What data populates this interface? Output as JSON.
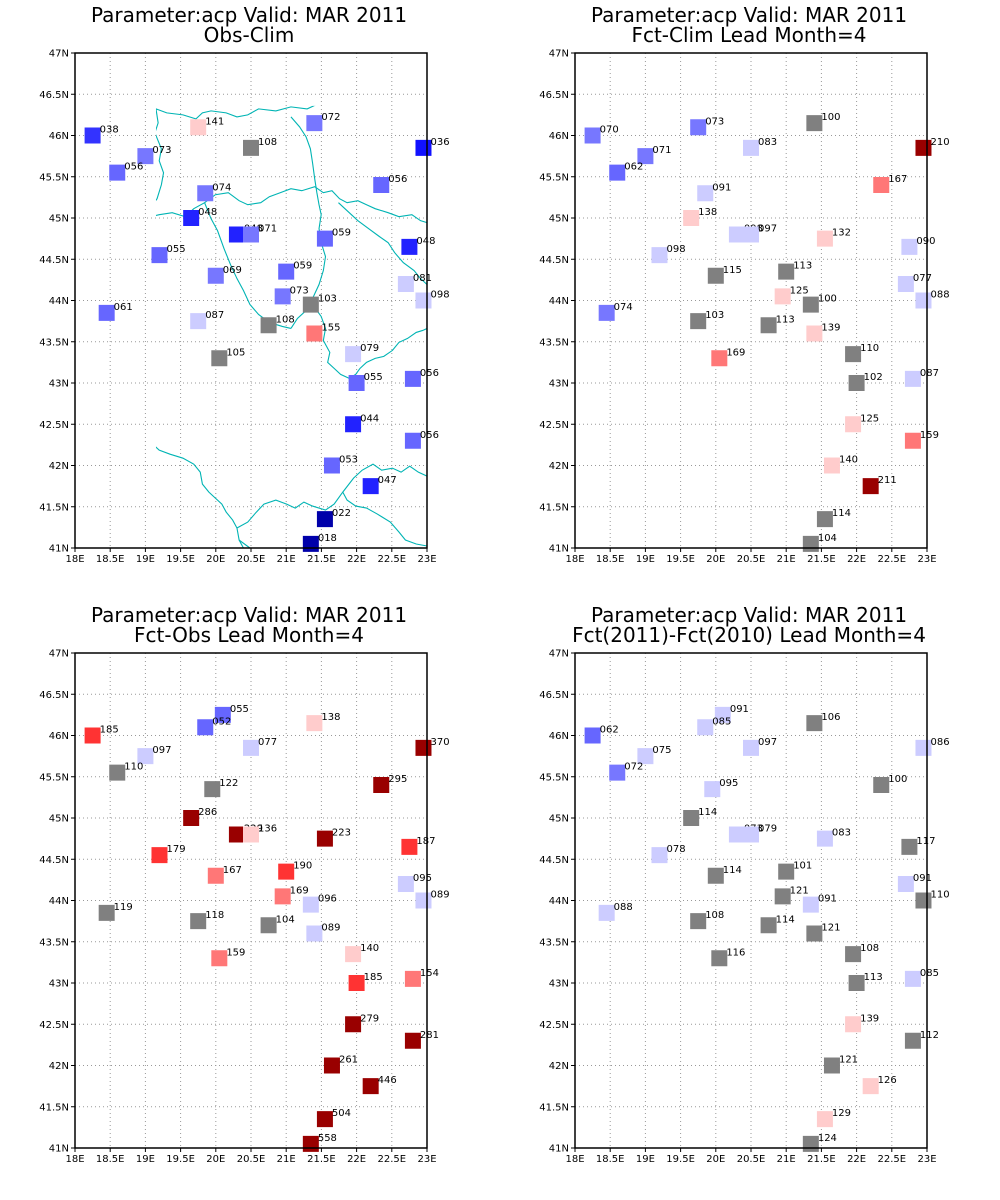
{
  "panels": [
    {
      "title1": "Parameter:acp Valid: MAR 2011",
      "title2": "Obs-Clim",
      "stations": [
        {
          "lon": 18.25,
          "lat": 46.0,
          "value": "038",
          "color": "#3333ff"
        },
        {
          "lon": 19.75,
          "lat": 46.1,
          "value": "141",
          "color": "#ffcccc"
        },
        {
          "lon": 20.5,
          "lat": 45.85,
          "value": "108",
          "color": "#808080"
        },
        {
          "lon": 21.4,
          "lat": 46.15,
          "value": "072",
          "color": "#7777ff"
        },
        {
          "lon": 22.95,
          "lat": 45.85,
          "value": "036",
          "color": "#1111ff"
        },
        {
          "lon": 19.0,
          "lat": 45.75,
          "value": "073",
          "color": "#7777ff"
        },
        {
          "lon": 18.6,
          "lat": 45.55,
          "value": "056",
          "color": "#6666ff"
        },
        {
          "lon": 19.85,
          "lat": 45.3,
          "value": "074",
          "color": "#7777ff"
        },
        {
          "lon": 22.35,
          "lat": 45.4,
          "value": "056",
          "color": "#6666ff"
        },
        {
          "lon": 19.65,
          "lat": 45.0,
          "value": "048",
          "color": "#2222ff"
        },
        {
          "lon": 20.3,
          "lat": 44.8,
          "value": "048",
          "color": "#2222ff"
        },
        {
          "lon": 20.5,
          "lat": 44.8,
          "value": "071",
          "color": "#7777ff"
        },
        {
          "lon": 21.55,
          "lat": 44.75,
          "value": "059",
          "color": "#6666ff"
        },
        {
          "lon": 22.75,
          "lat": 44.65,
          "value": "048",
          "color": "#2222ff"
        },
        {
          "lon": 19.2,
          "lat": 44.55,
          "value": "055",
          "color": "#6666ff"
        },
        {
          "lon": 20.0,
          "lat": 44.3,
          "value": "069",
          "color": "#7777ff"
        },
        {
          "lon": 21.0,
          "lat": 44.35,
          "value": "059",
          "color": "#6666ff"
        },
        {
          "lon": 22.7,
          "lat": 44.2,
          "value": "081",
          "color": "#ccccff"
        },
        {
          "lon": 20.95,
          "lat": 44.05,
          "value": "073",
          "color": "#7777ff"
        },
        {
          "lon": 21.35,
          "lat": 43.95,
          "value": "103",
          "color": "#808080"
        },
        {
          "lon": 22.95,
          "lat": 44.0,
          "value": "098",
          "color": "#ccccff"
        },
        {
          "lon": 18.45,
          "lat": 43.85,
          "value": "061",
          "color": "#6666ff"
        },
        {
          "lon": 19.75,
          "lat": 43.75,
          "value": "087",
          "color": "#ccccff"
        },
        {
          "lon": 20.75,
          "lat": 43.7,
          "value": "108",
          "color": "#808080"
        },
        {
          "lon": 21.4,
          "lat": 43.6,
          "value": "155",
          "color": "#ff7777"
        },
        {
          "lon": 20.05,
          "lat": 43.3,
          "value": "105",
          "color": "#808080"
        },
        {
          "lon": 21.95,
          "lat": 43.35,
          "value": "079",
          "color": "#ccccff"
        },
        {
          "lon": 22.0,
          "lat": 43.0,
          "value": "055",
          "color": "#6666ff"
        },
        {
          "lon": 22.8,
          "lat": 43.05,
          "value": "056",
          "color": "#6666ff"
        },
        {
          "lon": 21.95,
          "lat": 42.5,
          "value": "044",
          "color": "#2222ff"
        },
        {
          "lon": 22.8,
          "lat": 42.3,
          "value": "056",
          "color": "#6666ff"
        },
        {
          "lon": 21.65,
          "lat": 42.0,
          "value": "053",
          "color": "#6666ff"
        },
        {
          "lon": 22.2,
          "lat": 41.75,
          "value": "047",
          "color": "#2222ff"
        },
        {
          "lon": 21.55,
          "lat": 41.35,
          "value": "022",
          "color": "#0000aa"
        },
        {
          "lon": 21.35,
          "lat": 41.05,
          "value": "018",
          "color": "#0000aa"
        }
      ]
    },
    {
      "title1": "Parameter:acp Valid: MAR 2011",
      "title2": "Fct-Clim Lead Month=4",
      "stations": [
        {
          "lon": 18.25,
          "lat": 46.0,
          "value": "070",
          "color": "#7777ff"
        },
        {
          "lon": 19.75,
          "lat": 46.1,
          "value": "073",
          "color": "#7777ff"
        },
        {
          "lon": 21.4,
          "lat": 46.15,
          "value": "100",
          "color": "#808080"
        },
        {
          "lon": 22.95,
          "lat": 45.85,
          "value": "210",
          "color": "#990000"
        },
        {
          "lon": 19.0,
          "lat": 45.75,
          "value": "071",
          "color": "#7777ff"
        },
        {
          "lon": 20.5,
          "lat": 45.85,
          "value": "083",
          "color": "#ccccff"
        },
        {
          "lon": 18.6,
          "lat": 45.55,
          "value": "062",
          "color": "#6666ff"
        },
        {
          "lon": 19.85,
          "lat": 45.3,
          "value": "091",
          "color": "#ccccff"
        },
        {
          "lon": 22.35,
          "lat": 45.4,
          "value": "167",
          "color": "#ff7777"
        },
        {
          "lon": 19.65,
          "lat": 45.0,
          "value": "138",
          "color": "#ffcccc"
        },
        {
          "lon": 20.3,
          "lat": 44.8,
          "value": "098",
          "color": "#ccccff"
        },
        {
          "lon": 20.5,
          "lat": 44.8,
          "value": "097",
          "color": "#ccccff"
        },
        {
          "lon": 21.55,
          "lat": 44.75,
          "value": "132",
          "color": "#ffcccc"
        },
        {
          "lon": 22.75,
          "lat": 44.65,
          "value": "090",
          "color": "#ccccff"
        },
        {
          "lon": 19.2,
          "lat": 44.55,
          "value": "098",
          "color": "#ccccff"
        },
        {
          "lon": 20.0,
          "lat": 44.3,
          "value": "115",
          "color": "#808080"
        },
        {
          "lon": 21.0,
          "lat": 44.35,
          "value": "113",
          "color": "#808080"
        },
        {
          "lon": 22.7,
          "lat": 44.2,
          "value": "077",
          "color": "#ccccff"
        },
        {
          "lon": 20.95,
          "lat": 44.05,
          "value": "125",
          "color": "#ffcccc"
        },
        {
          "lon": 21.35,
          "lat": 43.95,
          "value": "100",
          "color": "#808080"
        },
        {
          "lon": 22.95,
          "lat": 44.0,
          "value": "088",
          "color": "#ccccff"
        },
        {
          "lon": 18.45,
          "lat": 43.85,
          "value": "074",
          "color": "#7777ff"
        },
        {
          "lon": 19.75,
          "lat": 43.75,
          "value": "103",
          "color": "#808080"
        },
        {
          "lon": 20.75,
          "lat": 43.7,
          "value": "113",
          "color": "#808080"
        },
        {
          "lon": 21.4,
          "lat": 43.6,
          "value": "139",
          "color": "#ffcccc"
        },
        {
          "lon": 20.05,
          "lat": 43.3,
          "value": "169",
          "color": "#ff7777"
        },
        {
          "lon": 21.95,
          "lat": 43.35,
          "value": "110",
          "color": "#808080"
        },
        {
          "lon": 22.0,
          "lat": 43.0,
          "value": "102",
          "color": "#808080"
        },
        {
          "lon": 22.8,
          "lat": 43.05,
          "value": "087",
          "color": "#ccccff"
        },
        {
          "lon": 21.95,
          "lat": 42.5,
          "value": "125",
          "color": "#ffcccc"
        },
        {
          "lon": 22.8,
          "lat": 42.3,
          "value": "159",
          "color": "#ff7777"
        },
        {
          "lon": 21.65,
          "lat": 42.0,
          "value": "140",
          "color": "#ffcccc"
        },
        {
          "lon": 22.2,
          "lat": 41.75,
          "value": "211",
          "color": "#990000"
        },
        {
          "lon": 21.55,
          "lat": 41.35,
          "value": "114",
          "color": "#808080"
        },
        {
          "lon": 21.35,
          "lat": 41.05,
          "value": "104",
          "color": "#808080"
        }
      ]
    },
    {
      "title1": "Parameter:acp Valid: MAR 2011",
      "title2": "Fct-Obs Lead Month=4",
      "stations": [
        {
          "lon": 18.25,
          "lat": 46.0,
          "value": "185",
          "color": "#ff3333"
        },
        {
          "lon": 20.1,
          "lat": 46.25,
          "value": "055",
          "color": "#6666ff"
        },
        {
          "lon": 19.85,
          "lat": 46.1,
          "value": "052",
          "color": "#6666ff"
        },
        {
          "lon": 21.4,
          "lat": 46.15,
          "value": "138",
          "color": "#ffcccc"
        },
        {
          "lon": 22.95,
          "lat": 45.85,
          "value": "370",
          "color": "#990000"
        },
        {
          "lon": 19.0,
          "lat": 45.75,
          "value": "097",
          "color": "#ccccff"
        },
        {
          "lon": 20.5,
          "lat": 45.85,
          "value": "077",
          "color": "#ccccff"
        },
        {
          "lon": 18.6,
          "lat": 45.55,
          "value": "110",
          "color": "#808080"
        },
        {
          "lon": 19.95,
          "lat": 45.35,
          "value": "122",
          "color": "#808080"
        },
        {
          "lon": 22.35,
          "lat": 45.4,
          "value": "295",
          "color": "#990000"
        },
        {
          "lon": 19.65,
          "lat": 45.0,
          "value": "286",
          "color": "#990000"
        },
        {
          "lon": 20.3,
          "lat": 44.8,
          "value": "229",
          "color": "#990000"
        },
        {
          "lon": 20.5,
          "lat": 44.8,
          "value": "136",
          "color": "#ffcccc"
        },
        {
          "lon": 21.55,
          "lat": 44.75,
          "value": "223",
          "color": "#990000"
        },
        {
          "lon": 22.75,
          "lat": 44.65,
          "value": "187",
          "color": "#ff3333"
        },
        {
          "lon": 19.2,
          "lat": 44.55,
          "value": "179",
          "color": "#ff3333"
        },
        {
          "lon": 20.0,
          "lat": 44.3,
          "value": "167",
          "color": "#ff7777"
        },
        {
          "lon": 21.0,
          "lat": 44.35,
          "value": "190",
          "color": "#ff3333"
        },
        {
          "lon": 22.7,
          "lat": 44.2,
          "value": "095",
          "color": "#ccccff"
        },
        {
          "lon": 20.95,
          "lat": 44.05,
          "value": "169",
          "color": "#ff7777"
        },
        {
          "lon": 21.35,
          "lat": 43.95,
          "value": "096",
          "color": "#ccccff"
        },
        {
          "lon": 22.95,
          "lat": 44.0,
          "value": "089",
          "color": "#ccccff"
        },
        {
          "lon": 18.45,
          "lat": 43.85,
          "value": "119",
          "color": "#808080"
        },
        {
          "lon": 19.75,
          "lat": 43.75,
          "value": "118",
          "color": "#808080"
        },
        {
          "lon": 20.75,
          "lat": 43.7,
          "value": "104",
          "color": "#808080"
        },
        {
          "lon": 21.4,
          "lat": 43.6,
          "value": "089",
          "color": "#ccccff"
        },
        {
          "lon": 20.05,
          "lat": 43.3,
          "value": "159",
          "color": "#ff7777"
        },
        {
          "lon": 21.95,
          "lat": 43.35,
          "value": "140",
          "color": "#ffcccc"
        },
        {
          "lon": 22.0,
          "lat": 43.0,
          "value": "185",
          "color": "#ff3333"
        },
        {
          "lon": 22.8,
          "lat": 43.05,
          "value": "154",
          "color": "#ff7777"
        },
        {
          "lon": 21.95,
          "lat": 42.5,
          "value": "279",
          "color": "#990000"
        },
        {
          "lon": 22.8,
          "lat": 42.3,
          "value": "281",
          "color": "#990000"
        },
        {
          "lon": 21.65,
          "lat": 42.0,
          "value": "261",
          "color": "#990000"
        },
        {
          "lon": 22.2,
          "lat": 41.75,
          "value": "446",
          "color": "#990000"
        },
        {
          "lon": 21.55,
          "lat": 41.35,
          "value": "504",
          "color": "#990000"
        },
        {
          "lon": 21.35,
          "lat": 41.05,
          "value": "558",
          "color": "#990000"
        }
      ]
    },
    {
      "title1": "Parameter:acp Valid: MAR 2011",
      "title2": "Fct(2011)-Fct(2010) Lead Month=4",
      "stations": [
        {
          "lon": 18.25,
          "lat": 46.0,
          "value": "062",
          "color": "#6666ff"
        },
        {
          "lon": 20.1,
          "lat": 46.25,
          "value": "091",
          "color": "#ccccff"
        },
        {
          "lon": 19.85,
          "lat": 46.1,
          "value": "085",
          "color": "#ccccff"
        },
        {
          "lon": 21.4,
          "lat": 46.15,
          "value": "106",
          "color": "#808080"
        },
        {
          "lon": 22.95,
          "lat": 45.85,
          "value": "086",
          "color": "#ccccff"
        },
        {
          "lon": 19.0,
          "lat": 45.75,
          "value": "075",
          "color": "#ccccff"
        },
        {
          "lon": 20.5,
          "lat": 45.85,
          "value": "097",
          "color": "#ccccff"
        },
        {
          "lon": 18.6,
          "lat": 45.55,
          "value": "072",
          "color": "#7777ff"
        },
        {
          "lon": 19.95,
          "lat": 45.35,
          "value": "095",
          "color": "#ccccff"
        },
        {
          "lon": 22.35,
          "lat": 45.4,
          "value": "100",
          "color": "#808080"
        },
        {
          "lon": 19.65,
          "lat": 45.0,
          "value": "114",
          "color": "#808080"
        },
        {
          "lon": 20.3,
          "lat": 44.8,
          "value": "073",
          "color": "#ccccff"
        },
        {
          "lon": 20.5,
          "lat": 44.8,
          "value": "079",
          "color": "#ccccff"
        },
        {
          "lon": 21.55,
          "lat": 44.75,
          "value": "083",
          "color": "#ccccff"
        },
        {
          "lon": 22.75,
          "lat": 44.65,
          "value": "117",
          "color": "#808080"
        },
        {
          "lon": 19.2,
          "lat": 44.55,
          "value": "078",
          "color": "#ccccff"
        },
        {
          "lon": 20.0,
          "lat": 44.3,
          "value": "114",
          "color": "#808080"
        },
        {
          "lon": 21.0,
          "lat": 44.35,
          "value": "101",
          "color": "#808080"
        },
        {
          "lon": 22.7,
          "lat": 44.2,
          "value": "091",
          "color": "#ccccff"
        },
        {
          "lon": 20.95,
          "lat": 44.05,
          "value": "121",
          "color": "#808080"
        },
        {
          "lon": 21.35,
          "lat": 43.95,
          "value": "091",
          "color": "#ccccff"
        },
        {
          "lon": 22.95,
          "lat": 44.0,
          "value": "110",
          "color": "#808080"
        },
        {
          "lon": 18.45,
          "lat": 43.85,
          "value": "088",
          "color": "#ccccff"
        },
        {
          "lon": 19.75,
          "lat": 43.75,
          "value": "108",
          "color": "#808080"
        },
        {
          "lon": 20.75,
          "lat": 43.7,
          "value": "114",
          "color": "#808080"
        },
        {
          "lon": 21.4,
          "lat": 43.6,
          "value": "121",
          "color": "#808080"
        },
        {
          "lon": 20.05,
          "lat": 43.3,
          "value": "116",
          "color": "#808080"
        },
        {
          "lon": 21.95,
          "lat": 43.35,
          "value": "108",
          "color": "#808080"
        },
        {
          "lon": 22.0,
          "lat": 43.0,
          "value": "113",
          "color": "#808080"
        },
        {
          "lon": 22.8,
          "lat": 43.05,
          "value": "085",
          "color": "#ccccff"
        },
        {
          "lon": 21.95,
          "lat": 42.5,
          "value": "139",
          "color": "#ffcccc"
        },
        {
          "lon": 22.8,
          "lat": 42.3,
          "value": "112",
          "color": "#808080"
        },
        {
          "lon": 21.65,
          "lat": 42.0,
          "value": "121",
          "color": "#808080"
        },
        {
          "lon": 22.2,
          "lat": 41.75,
          "value": "126",
          "color": "#ffcccc"
        },
        {
          "lon": 21.55,
          "lat": 41.35,
          "value": "129",
          "color": "#ffcccc"
        },
        {
          "lon": 21.35,
          "lat": 41.05,
          "value": "124",
          "color": "#808080"
        }
      ]
    }
  ],
  "axes": {
    "lon_range": [
      18,
      23
    ],
    "lat_range": [
      41,
      47
    ],
    "lon_ticks": [
      18,
      18.5,
      19,
      19.5,
      20,
      20.5,
      21,
      21.5,
      22,
      22.5,
      23
    ],
    "lon_labels": [
      "18E",
      "18.5E",
      "19E",
      "19.5E",
      "20E",
      "20.5E",
      "21E",
      "21.5E",
      "22E",
      "22.5E",
      "23E"
    ],
    "lat_ticks": [
      41,
      41.5,
      42,
      42.5,
      43,
      43.5,
      44,
      44.5,
      45,
      45.5,
      46,
      46.5,
      47
    ],
    "lat_labels": [
      "41N",
      "41.5N",
      "42N",
      "42.5N",
      "43N",
      "43.5N",
      "44N",
      "44.5N",
      "45N",
      "45.5N",
      "46N",
      "46.5N",
      "47N"
    ],
    "grid": true,
    "grid_color": "#999999",
    "boundary_color": "#00b4b4"
  }
}
